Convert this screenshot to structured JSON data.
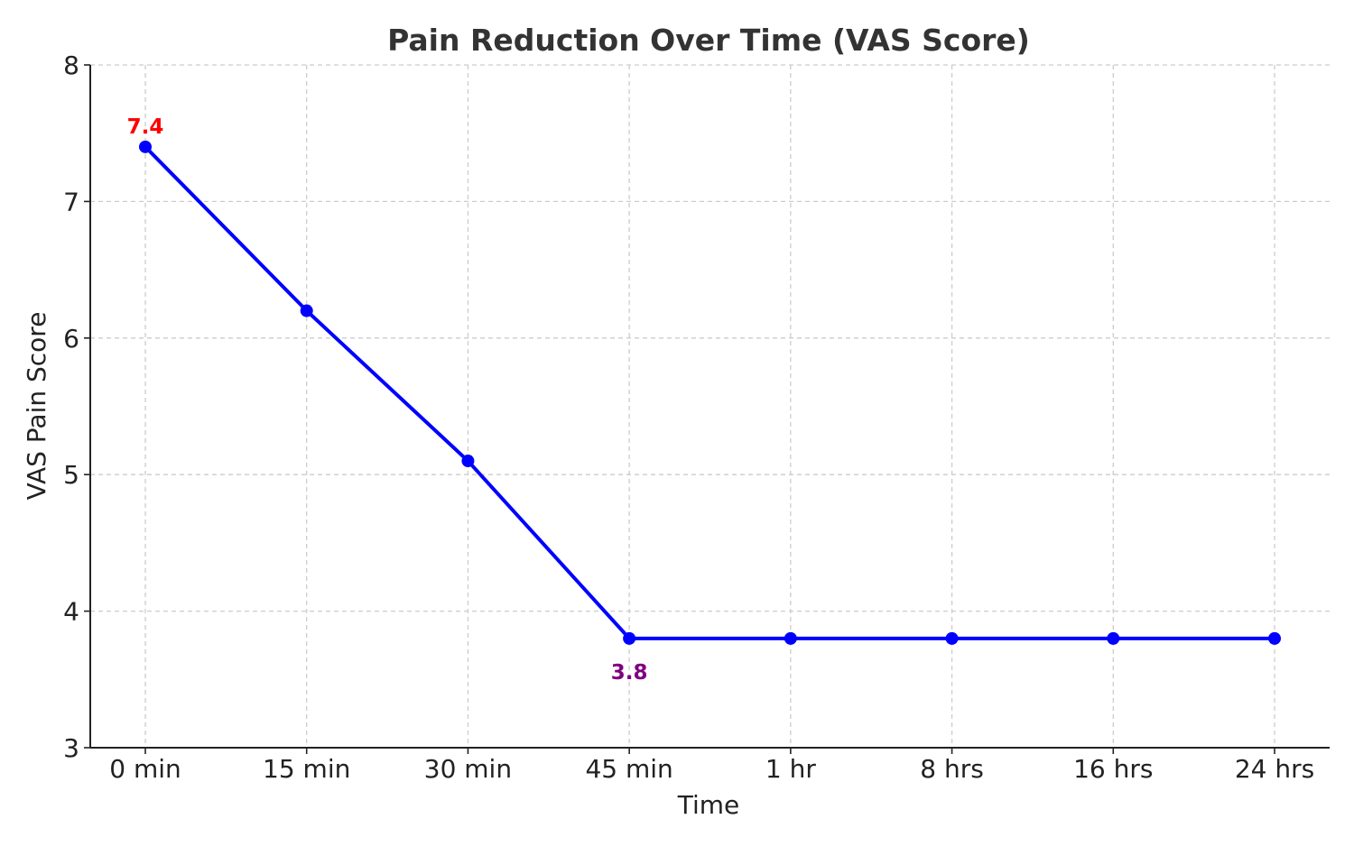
{
  "chart_data": {
    "type": "line",
    "title": "Pain Reduction Over Time (VAS Score)",
    "xlabel": "Time",
    "ylabel": "VAS Pain Score",
    "categories": [
      "0 min",
      "15 min",
      "30 min",
      "45 min",
      "1 hr",
      "8 hrs",
      "16 hrs",
      "24 hrs"
    ],
    "series": [
      {
        "values": [
          7.4,
          6.2,
          5.1,
          3.8,
          3.8,
          3.8,
          3.8,
          3.8
        ],
        "color": "#0000ff"
      }
    ],
    "ylim": [
      3,
      8
    ],
    "yticks": [
      3,
      4,
      5,
      6,
      7,
      8
    ],
    "grid": true,
    "annotations": [
      {
        "text": "7.4",
        "category": "0 min",
        "value": 7.4,
        "color": "#ff0000",
        "position": "above"
      },
      {
        "text": "3.8",
        "category": "45 min",
        "value": 3.8,
        "color": "#800080",
        "position": "below"
      }
    ]
  }
}
